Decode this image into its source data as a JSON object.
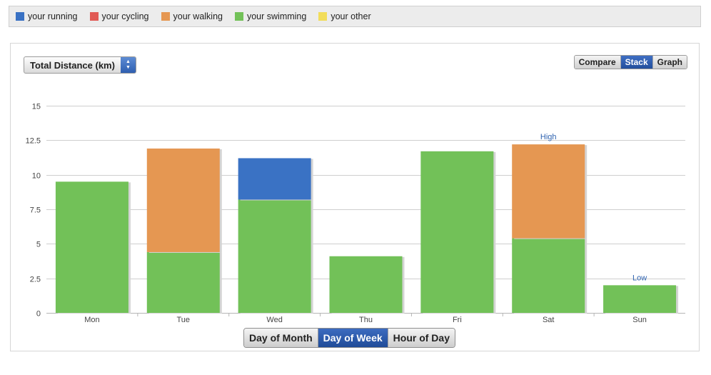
{
  "legend": [
    {
      "label": "your running",
      "color": "#3a72c4"
    },
    {
      "label": "your cycling",
      "color": "#e15a55"
    },
    {
      "label": "your walking",
      "color": "#e59752"
    },
    {
      "label": "your swimming",
      "color": "#72c158"
    },
    {
      "label": "your other",
      "color": "#f2dd5a"
    }
  ],
  "metric_select": {
    "label": "Total Distance (km)"
  },
  "view_modes": [
    {
      "label": "Compare",
      "active": false
    },
    {
      "label": "Stack",
      "active": true
    },
    {
      "label": "Graph",
      "active": false
    }
  ],
  "period_tabs": [
    {
      "label": "Day of Month",
      "active": false
    },
    {
      "label": "Day of Week",
      "active": true
    },
    {
      "label": "Hour of Day",
      "active": false
    }
  ],
  "chart_data": {
    "type": "bar",
    "stacked": true,
    "categories": [
      "Mon",
      "Tue",
      "Wed",
      "Thu",
      "Fri",
      "Sat",
      "Sun"
    ],
    "series": [
      {
        "name": "your swimming",
        "color": "#72c158",
        "values": [
          9.5,
          4.4,
          8.2,
          4.1,
          11.7,
          5.4,
          2.0
        ]
      },
      {
        "name": "your walking",
        "color": "#e59752",
        "values": [
          0,
          7.5,
          0,
          0,
          0,
          6.8,
          0
        ]
      },
      {
        "name": "your running",
        "color": "#3a72c4",
        "values": [
          0,
          0,
          3.0,
          0,
          0,
          0,
          0
        ]
      }
    ],
    "ylim": [
      0,
      15
    ],
    "yticks": [
      "0",
      "2.5",
      "5",
      "7.5",
      "10",
      "12.5",
      "15"
    ],
    "grid": true,
    "annotations": [
      {
        "text": "High",
        "category": "Sat"
      },
      {
        "text": "Low",
        "category": "Sun"
      }
    ]
  }
}
